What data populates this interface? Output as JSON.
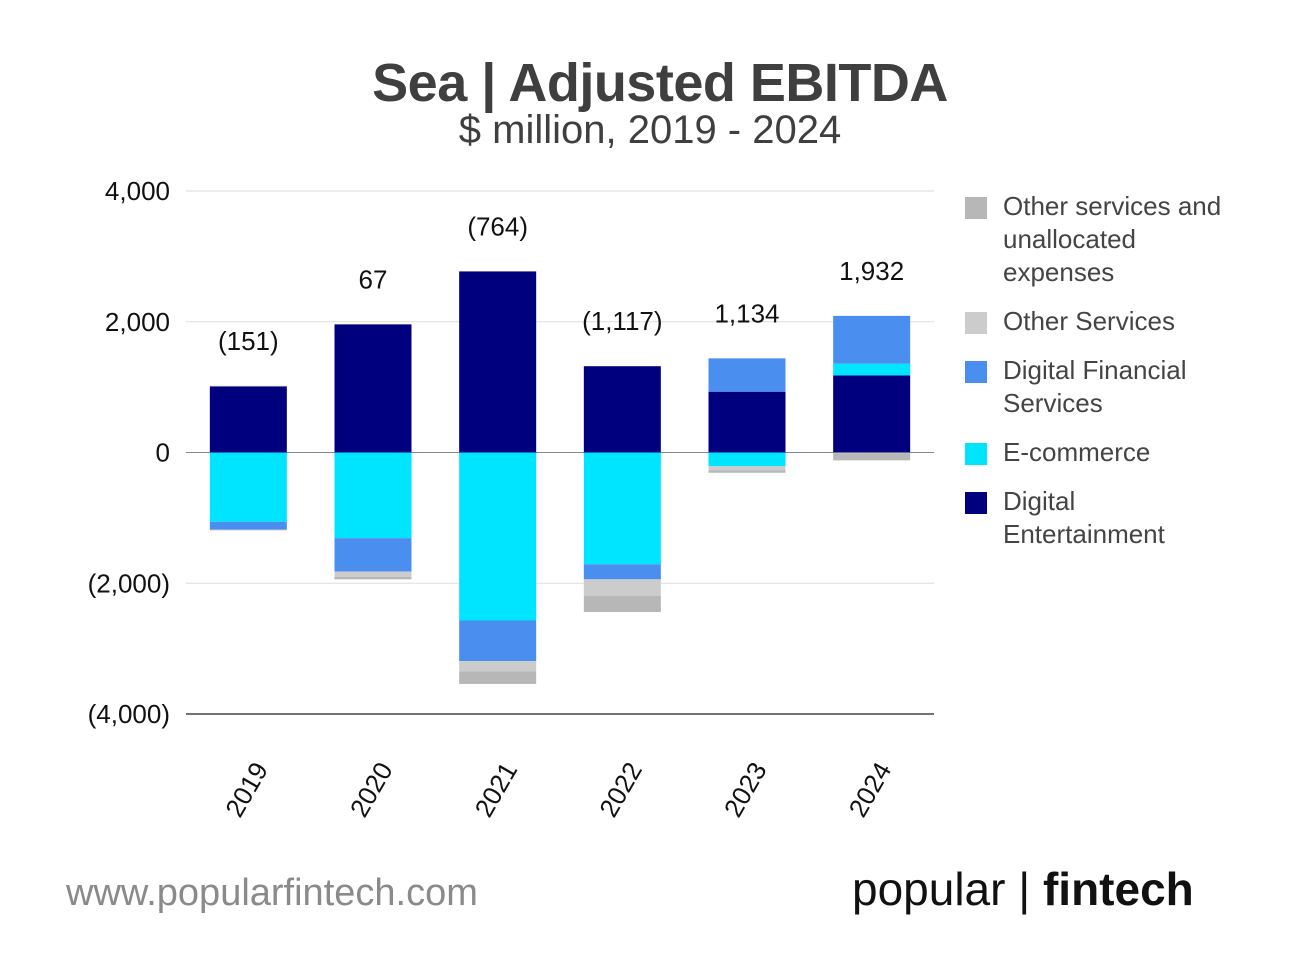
{
  "header": {
    "title": "Sea | Adjusted EBITDA",
    "subtitle": "$ million, 2019 - 2024"
  },
  "chart_data": {
    "type": "bar",
    "stacked": true,
    "title": "Sea | Adjusted EBITDA",
    "subtitle": "$ million, 2019 - 2024",
    "categories": [
      "2019",
      "2020",
      "2021",
      "2022",
      "2023",
      "2024"
    ],
    "ylim": [
      -4000,
      4000
    ],
    "yticks": [
      4000,
      2000,
      0,
      -2000,
      -4000
    ],
    "ytick_labels": [
      "4,000",
      "2,000",
      "0",
      "(2,000)",
      "(4,000)"
    ],
    "series": [
      {
        "name": "Digital Entertainment",
        "color": "#00007f",
        "values": [
          1010,
          1960,
          2770,
          1320,
          930,
          1180
        ]
      },
      {
        "name": "E-commerce",
        "color": "#00e5ff",
        "values": [
          -1060,
          -1310,
          -2570,
          -1710,
          -210,
          180
        ]
      },
      {
        "name": "Digital Financial Services",
        "color": "#4a8ef0",
        "values": [
          -120,
          -510,
          -620,
          -230,
          510,
          730
        ]
      },
      {
        "name": "Other Services",
        "color": "#cccccc",
        "values": [
          10,
          -80,
          -160,
          -250,
          -60,
          -10
        ]
      },
      {
        "name": "Other services and unallocated expenses",
        "color": "#b7b7b7",
        "values": [
          -10,
          -40,
          -190,
          -250,
          -40,
          -110
        ]
      }
    ],
    "totals": [
      {
        "value": -151,
        "label": "(151)"
      },
      {
        "value": 67,
        "label": "67"
      },
      {
        "value": -764,
        "label": "(764)"
      },
      {
        "value": -1117,
        "label": "(1,117)"
      },
      {
        "value": 1134,
        "label": "1,134"
      },
      {
        "value": 1932,
        "label": "1,932"
      }
    ],
    "legend": {
      "position": "right",
      "items": [
        "Other services and unallocated expenses",
        "Other Services",
        "Digital Financial Services",
        "E-commerce",
        "Digital Entertainment"
      ]
    },
    "grid": true
  },
  "footer": {
    "url": "www.popularfintech.com",
    "brand_regular": "popular | ",
    "brand_bold": "fintech"
  }
}
